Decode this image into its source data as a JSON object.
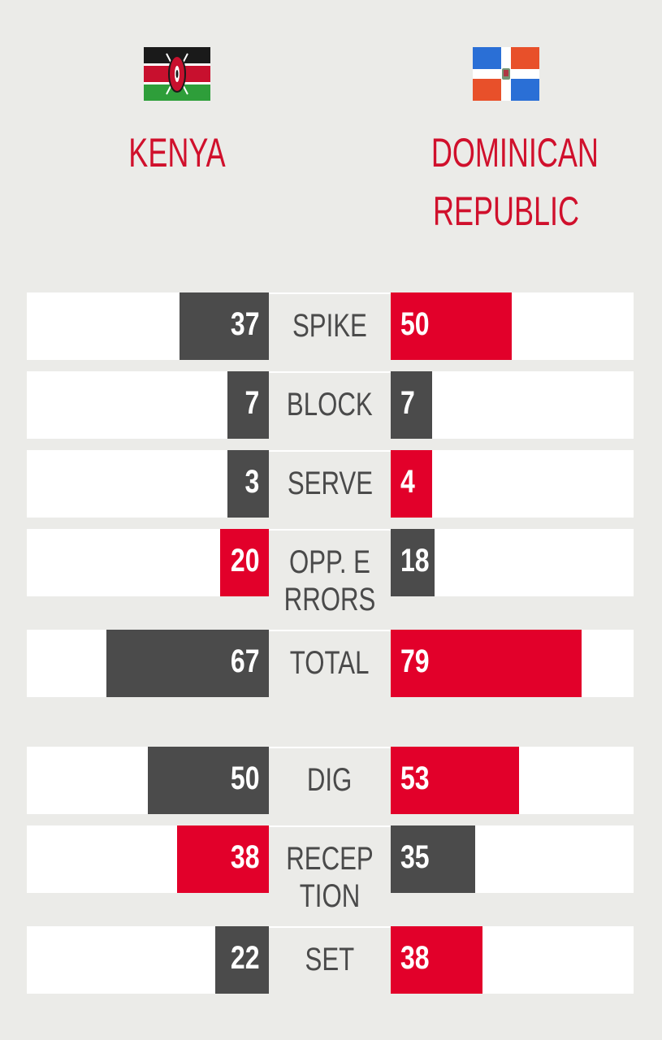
{
  "teams": {
    "left": {
      "name": "KENYA",
      "flag_icon": "kenya-flag-icon"
    },
    "right": {
      "name": "DOMINICAN\nREPUBLIC",
      "flag_icon": "dominican-republic-flag-icon"
    }
  },
  "colors": {
    "highlight": "#e2002a",
    "neutral": "#4b4b4b",
    "track": "#ffffff",
    "text_accent": "#d0102c"
  },
  "stats": [
    {
      "label": "SPIKE",
      "left": 37,
      "right": 50,
      "left_color": "gray",
      "right_color": "red",
      "left_frac": 0.37,
      "right_frac": 0.5
    },
    {
      "label": "BLOCK",
      "left": 7,
      "right": 7,
      "left_color": "gray",
      "right_color": "gray",
      "left_frac": 0.17,
      "right_frac": 0.17
    },
    {
      "label": "SERVE",
      "left": 3,
      "right": 4,
      "left_color": "gray",
      "right_color": "red",
      "left_frac": 0.17,
      "right_frac": 0.17
    },
    {
      "label": "OPP. ERRORS",
      "left": 20,
      "right": 18,
      "left_color": "red",
      "right_color": "gray",
      "left_frac": 0.2,
      "right_frac": 0.18
    },
    {
      "label": "TOTAL",
      "left": 67,
      "right": 79,
      "left_color": "gray",
      "right_color": "red",
      "left_frac": 0.67,
      "right_frac": 0.79
    },
    {
      "label": "DIG",
      "left": 50,
      "right": 53,
      "left_color": "gray",
      "right_color": "red",
      "left_frac": 0.5,
      "right_frac": 0.53
    },
    {
      "label": "RECEPTION",
      "left": 38,
      "right": 35,
      "left_color": "red",
      "right_color": "gray",
      "left_frac": 0.38,
      "right_frac": 0.35
    },
    {
      "label": "SET",
      "left": 22,
      "right": 38,
      "left_color": "gray",
      "right_color": "red",
      "left_frac": 0.22,
      "right_frac": 0.38
    }
  ]
}
